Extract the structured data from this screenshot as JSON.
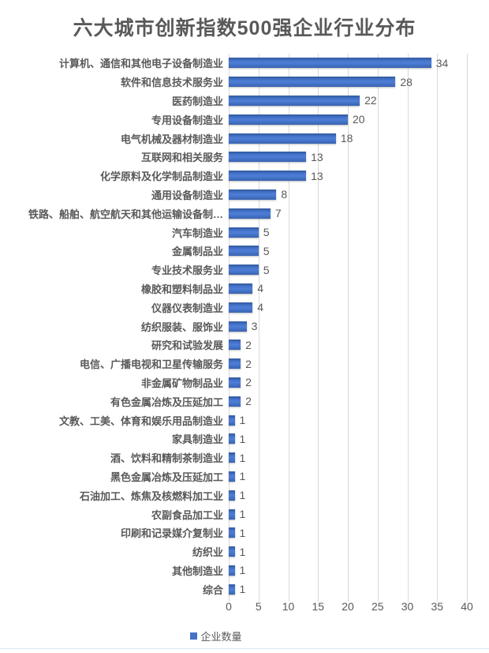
{
  "page": {
    "background": "#ffffff"
  },
  "colors": {
    "bar_color": "#4472C4",
    "text_color": "#595959",
    "gridline_color": "#D9D9D9",
    "bottom_divider_color": "#DBE5F1"
  },
  "chart_data": {
    "type": "bar",
    "orientation": "horizontal",
    "title": "六大城市创新指数500强企业行业分布",
    "xlabel": "",
    "ylabel": "",
    "xlim": [
      0,
      40
    ],
    "x_ticks": [
      0,
      5,
      10,
      15,
      20,
      25,
      30,
      35,
      40
    ],
    "grid": "vertical",
    "data_labels": true,
    "legend": {
      "label": "企业数量",
      "position": "bottom"
    },
    "categories": [
      "计算机、通信和其他电子设备制造业",
      "软件和信息技术服务业",
      "医药制造业",
      "专用设备制造业",
      "电气机械及器材制造业",
      "互联网和相关服务",
      "化学原料及化学制品制造业",
      "通用设备制造业",
      "铁路、船舶、航空航天和其他运输设备制…",
      "汽车制造业",
      "金属制品业",
      "专业技术服务业",
      "橡胶和塑料制品业",
      "仪器仪表制造业",
      "纺织服装、服饰业",
      "研究和试验发展",
      "电信、广播电视和卫星传输服务",
      "非金属矿物制品业",
      "有色金属冶炼及压延加工",
      "文教、工美、体育和娱乐用品制造业",
      "家具制造业",
      "酒、饮料和精制茶制造业",
      "黑色金属冶炼及压延加工",
      "石油加工、炼焦及核燃料加工业",
      "农副食品加工业",
      "印刷和记录媒介复制业",
      "纺织业",
      "其他制造业",
      "综合"
    ],
    "values": [
      34,
      28,
      22,
      20,
      18,
      13,
      13,
      8,
      7,
      5,
      5,
      5,
      4,
      4,
      3,
      2,
      2,
      2,
      2,
      1,
      1,
      1,
      1,
      1,
      1,
      1,
      1,
      1,
      1
    ]
  }
}
